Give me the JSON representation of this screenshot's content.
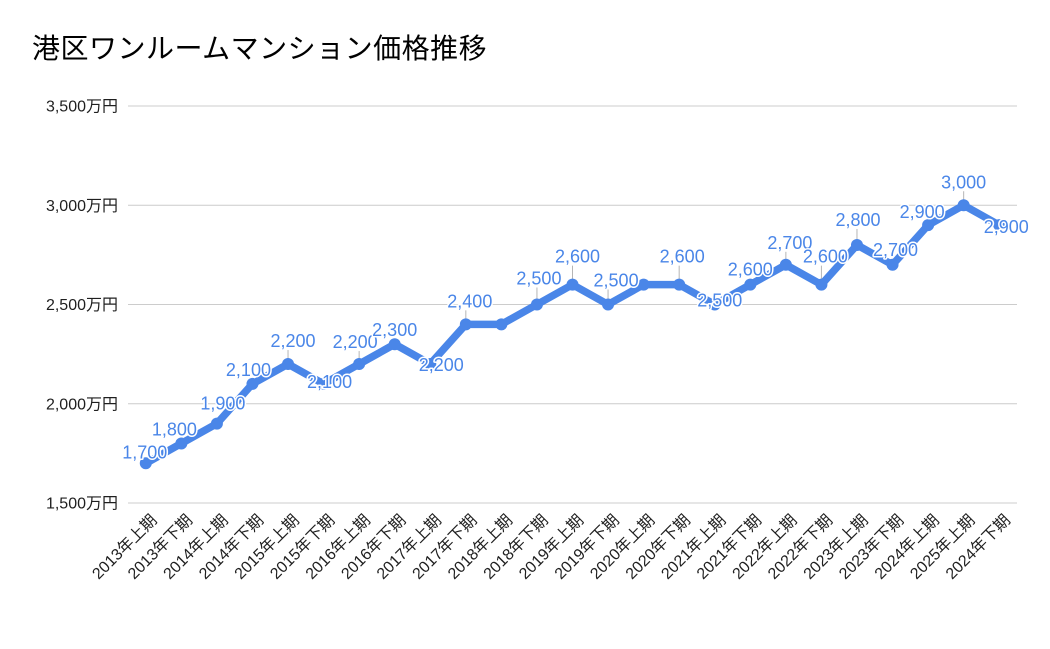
{
  "chart_data": {
    "type": "line",
    "title": "港区ワンルームマンション価格推移",
    "categories": [
      "2013年上期",
      "2013年下期",
      "2014年上期",
      "2014年下期",
      "2015年上期",
      "2015年下期",
      "2016年上期",
      "2016年下期",
      "2017年上期",
      "2017年下期",
      "2018年上期",
      "2018年下期",
      "2019年上期",
      "2019年下期",
      "2020年上期",
      "2020年下期",
      "2021年上期",
      "2021年下期",
      "2022年上期",
      "2022年下期",
      "2023年上期",
      "2023年下期",
      "2024年上期",
      "2025年上期",
      "2024年下期"
    ],
    "values": [
      1700,
      1800,
      1900,
      2100,
      2200,
      2100,
      2200,
      2300,
      2200,
      2400,
      2400,
      2500,
      2600,
      2500,
      2600,
      2600,
      2500,
      2600,
      2700,
      2600,
      2800,
      2700,
      2900,
      3000,
      2900
    ],
    "point_labels": [
      "1,700",
      "1,800",
      "1,900",
      "2,100",
      "2,200",
      "2,100",
      "2,200",
      "2,300",
      "2,200",
      "2,400",
      "",
      "2,500",
      "2,600",
      "2,500",
      "",
      "2,600",
      "2,500",
      "2,600",
      "2,700",
      "2,600",
      "2,800",
      "2,700",
      "2,900",
      "3,000",
      "2,900"
    ],
    "y_ticks": [
      "1,500万円",
      "2,000万円",
      "2,500万円",
      "3,000万円",
      "3,500万円"
    ],
    "y_tick_values": [
      1500,
      2000,
      2500,
      3000,
      3500
    ],
    "ylim": [
      1500,
      3500
    ],
    "unit": "万円",
    "grid": "horizontal",
    "legend": "none",
    "colors": {
      "series": "#4a86e8",
      "annotation": "#4a86e8",
      "title": "#757575",
      "axis_text": "#1f1f1f",
      "gridline": "#cccccc",
      "stem": "#b5b5b5",
      "background": "#ffffff"
    }
  }
}
